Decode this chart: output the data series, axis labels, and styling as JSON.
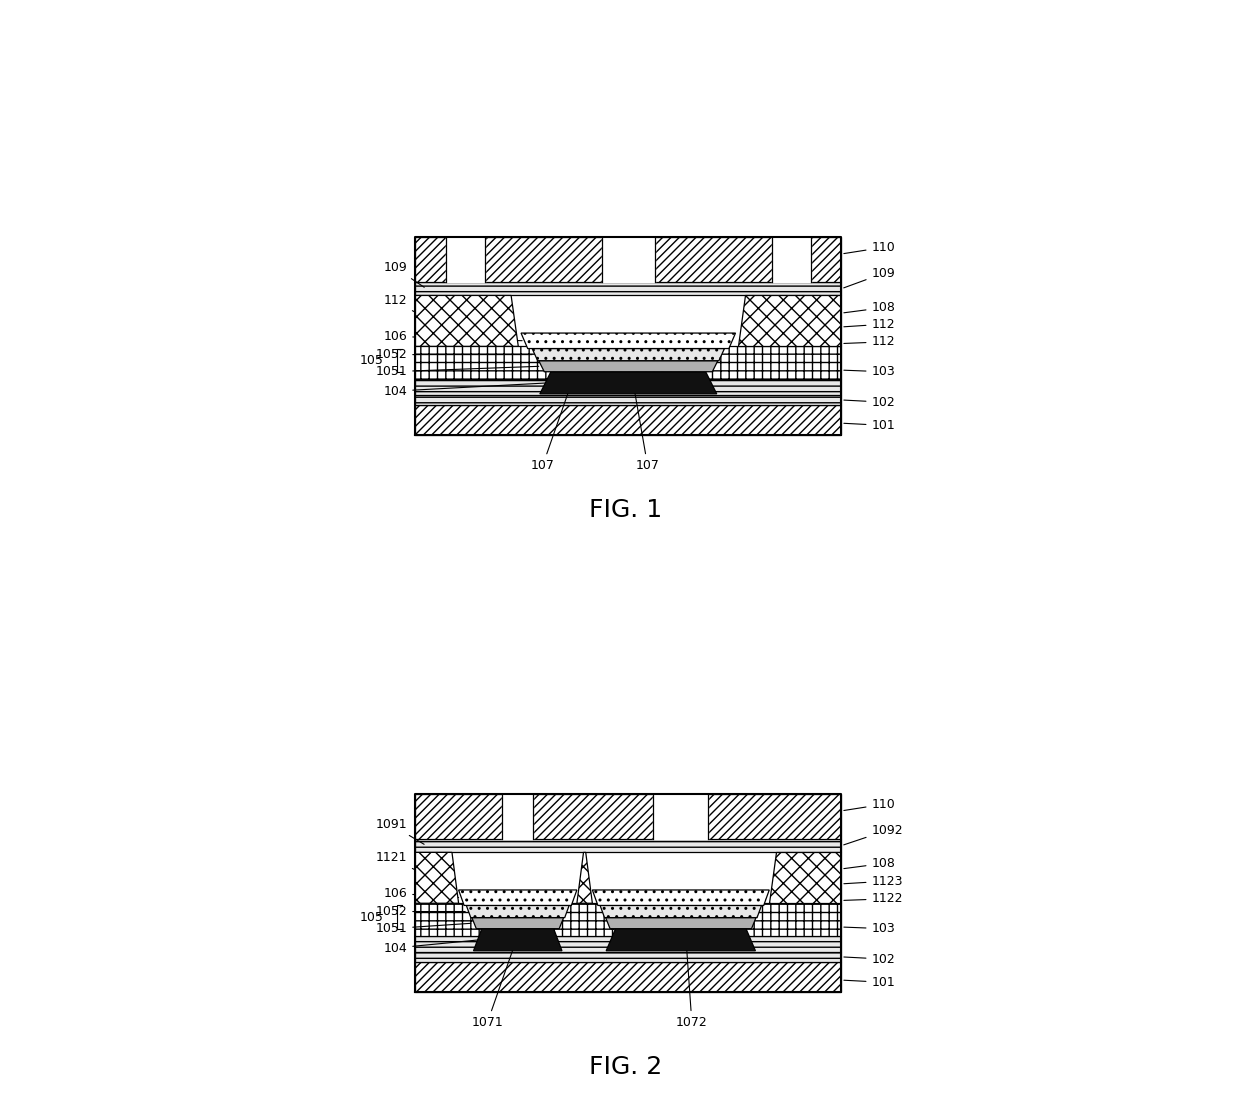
{
  "fig_width": 12.4,
  "fig_height": 11.18,
  "bg_color": "#ffffff"
}
